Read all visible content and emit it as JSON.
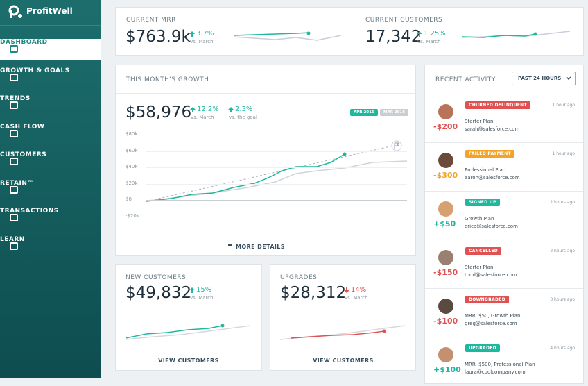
{
  "sidebar": {
    "brand": "ProfitWell",
    "nav": [
      "DASHBOARD",
      "GROWTH & GOALS",
      "TRENDS",
      "CASH FLOW",
      "CUSTOMERS",
      "RETAIN™",
      "TRANSACTIONS",
      "LEARN"
    ]
  },
  "mrr": {
    "label": "CURRENT MRR",
    "value": "$763.9k",
    "change": "3.7%",
    "period": "vs. March"
  },
  "customers": {
    "label": "CURRENT CUSTOMERS",
    "value": "17,342",
    "change": "1.25%",
    "period": "vs. March"
  },
  "growth": {
    "title": "THIS MONTH'S GROWTH",
    "value": "$58,976",
    "change1": "12.2%",
    "period1": "vs. March",
    "change2": "2.3%",
    "period2": "vs. the goal",
    "tags": [
      "APR 2016",
      "MAR 2016"
    ],
    "axis": [
      "$80k",
      "$60k",
      "$40k",
      "$20k",
      "$0",
      "-$20k"
    ],
    "link": "MORE DETAILS"
  },
  "new_customers": {
    "label": "NEW CUSTOMERS",
    "value": "$49,832",
    "change": "15%",
    "period": "vs. March",
    "link": "VIEW CUSTOMERS"
  },
  "upgrades": {
    "label": "UPGRADES",
    "value": "$28,312",
    "change": "14%",
    "period": "vs. March",
    "link": "VIEW CUSTOMERS"
  },
  "activity": {
    "title": "RECENT ACTIVITY",
    "filter": "PAST 24 HOURS",
    "items": [
      {
        "amount": "-$200",
        "status": "CHURNED DELINQUENT",
        "plan": "Starter Plan",
        "email": "sarah@salesforce.com",
        "time": "1 hour ago",
        "color": "#e05252"
      },
      {
        "amount": "-$300",
        "status": "FAILED PAYMENT",
        "plan": "Professional Plan",
        "email": "aaron@salesforce.com",
        "time": "1 hour ago",
        "color": "#f3a328"
      },
      {
        "amount": "+$50",
        "status": "SIGNED UP",
        "plan": "Growth Plan",
        "email": "erica@salesforce.com",
        "time": "2 hours ago",
        "color": "#1fb89f"
      },
      {
        "amount": "-$150",
        "status": "CANCELLED",
        "plan": "Starter Plan",
        "email": "todd@salesforce.com",
        "time": "2 hours ago",
        "color": "#e05252"
      },
      {
        "amount": "-$100",
        "status": "DOWNGRADED",
        "plan": "MRR: $50, Growth Plan",
        "email": "greg@salesforce.com",
        "time": "3 hours ago",
        "color": "#e05252"
      },
      {
        "amount": "+$100",
        "status": "UPGRADED",
        "plan": "MRR: $500, Professional Plan",
        "email": "laura@coolcompany.com",
        "time": "4 hours ago",
        "color": "#1fb89f"
      }
    ]
  }
}
